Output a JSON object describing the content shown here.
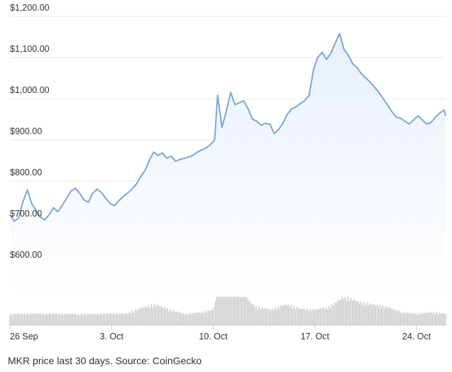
{
  "caption": "MKR price last 30 days. Source: CoinGecko",
  "chart_data": {
    "type": "area",
    "title": "",
    "xlabel": "",
    "ylabel": "",
    "ylim": [
      575,
      1225
    ],
    "y_ticks": [
      600,
      700,
      800,
      900,
      1000,
      1100,
      1200
    ],
    "y_tick_labels": [
      "$600.00",
      "$700.00",
      "$800.00",
      "$900.00",
      "$1,000.00",
      "$1,100.00",
      "$1,200.00"
    ],
    "x_ticks": [
      "26 Sep",
      "3. Oct",
      "10. Oct",
      "17. Oct",
      "24. Oct"
    ],
    "x_tick_positions": [
      0,
      7,
      14,
      21,
      28
    ],
    "grid": true,
    "line_color": "#7aa7d9",
    "fill_color": "#e8f0fb",
    "volume_color": "#bfbfbf",
    "series": [
      {
        "values_kind": "price",
        "x": [
          0,
          0.3,
          0.6,
          0.9,
          1.2,
          1.5,
          1.8,
          2.1,
          2.4,
          2.7,
          3.0,
          3.3,
          3.6,
          3.9,
          4.2,
          4.5,
          4.8,
          5.1,
          5.4,
          5.7,
          6.0,
          6.3,
          6.6,
          6.9,
          7.2,
          7.5,
          7.8,
          8.1,
          8.4,
          8.7,
          9.0,
          9.3,
          9.6,
          9.9,
          10.2,
          10.5,
          10.8,
          11.1,
          11.4,
          11.7,
          12.0,
          12.3,
          12.6,
          12.9,
          13.2,
          13.5,
          13.8,
          14.0,
          14.1,
          14.3,
          14.6,
          14.9,
          15.2,
          15.5,
          15.8,
          16.1,
          16.4,
          16.7,
          17.0,
          17.3,
          17.6,
          17.9,
          18.2,
          18.5,
          18.8,
          19.1,
          19.4,
          19.7,
          20.0,
          20.3,
          20.6,
          20.9,
          21.2,
          21.5,
          21.8,
          22.1,
          22.4,
          22.7,
          23.0,
          23.3,
          23.6,
          23.9,
          24.2,
          24.5,
          24.8,
          25.1,
          25.4,
          25.7,
          26.0,
          26.3,
          26.6,
          26.9,
          27.2,
          27.5,
          27.8,
          28.1,
          28.4,
          28.7,
          29.0,
          29.3,
          29.6,
          29.9,
          30.0
        ],
        "values": [
          708,
          692,
          700,
          740,
          768,
          735,
          718,
          702,
          695,
          708,
          725,
          715,
          730,
          748,
          765,
          772,
          760,
          744,
          738,
          760,
          770,
          762,
          748,
          735,
          730,
          742,
          752,
          760,
          770,
          782,
          800,
          815,
          840,
          860,
          852,
          858,
          845,
          850,
          838,
          842,
          845,
          848,
          852,
          860,
          865,
          870,
          878,
          885,
          892,
          998,
          920,
          960,
          1005,
          975,
          980,
          985,
          965,
          940,
          935,
          925,
          930,
          928,
          905,
          915,
          930,
          952,
          965,
          970,
          978,
          985,
          998,
          1060,
          1090,
          1102,
          1085,
          1100,
          1125,
          1148,
          1110,
          1095,
          1075,
          1065,
          1050,
          1040,
          1030,
          1018,
          1005,
          990,
          975,
          958,
          945,
          942,
          935,
          928,
          938,
          948,
          938,
          928,
          932,
          945,
          955,
          962,
          948
        ]
      },
      {
        "values_kind": "volume",
        "x": [
          0,
          1,
          2,
          3,
          4,
          5,
          6,
          7,
          8,
          9,
          10,
          11,
          12,
          13,
          14,
          14.5,
          15,
          15.5,
          16,
          16.5,
          17,
          18,
          19,
          20,
          21,
          22,
          23,
          24,
          25,
          26,
          27,
          28,
          29,
          30
        ],
        "values": [
          0.22,
          0.22,
          0.23,
          0.22,
          0.22,
          0.21,
          0.22,
          0.23,
          0.22,
          0.33,
          0.4,
          0.3,
          0.22,
          0.24,
          0.3,
          0.85,
          1.0,
          0.75,
          0.7,
          0.45,
          0.35,
          0.3,
          0.4,
          0.32,
          0.3,
          0.35,
          0.55,
          0.45,
          0.4,
          0.35,
          0.25,
          0.22,
          0.25,
          0.22
        ]
      }
    ]
  }
}
